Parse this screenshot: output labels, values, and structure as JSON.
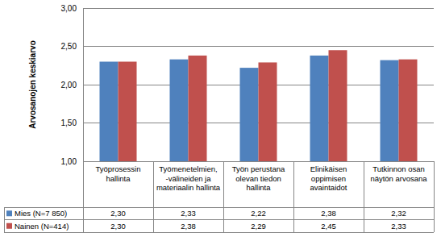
{
  "chart_data": {
    "type": "bar",
    "y_label": "Arvosanojen keskiarvo",
    "categories": [
      "Työprosessin hallinta",
      "Työmenetelmien, -välineiden ja materiaalin hallinta",
      "Työn perustana olevan tiedon hallinta",
      "Elinikäisen oppimisen avaintaidot",
      "Tutkinnon osan näytön arvosana"
    ],
    "series": [
      {
        "name": "Mies (N=7 850)",
        "color": "#4f81bd",
        "values": [
          2.3,
          2.33,
          2.22,
          2.38,
          2.32
        ],
        "value_labels": [
          "2,30",
          "2,33",
          "2,22",
          "2,38",
          "2,32"
        ]
      },
      {
        "name": "Nainen (N=414)",
        "color": "#c0504d",
        "values": [
          2.3,
          2.38,
          2.29,
          2.45,
          2.33
        ],
        "value_labels": [
          "2,30",
          "2,38",
          "2,29",
          "2,45",
          "2,33"
        ]
      }
    ],
    "ylim": [
      1,
      3
    ],
    "yticks": [
      {
        "value": 1,
        "label": "1,00"
      },
      {
        "value": 1.5,
        "label": "1,50"
      },
      {
        "value": 2,
        "label": "2,00"
      },
      {
        "value": 2.5,
        "label": "2,50"
      },
      {
        "value": 3,
        "label": "3,00"
      }
    ],
    "grid": true
  }
}
